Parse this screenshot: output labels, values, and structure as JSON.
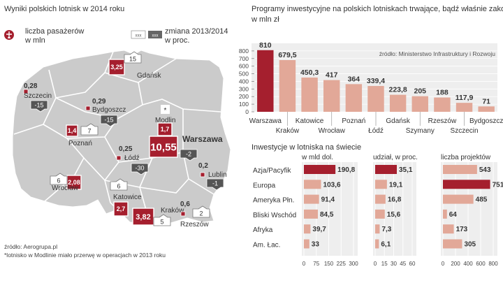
{
  "colors": {
    "accent": "#a51f2e",
    "bar": "#e2a898",
    "map": "#cbcbcb",
    "map_border": "#ffffff",
    "badge": "#e6e6e6",
    "badge_dark": "#555555",
    "text": "#333333",
    "grid": "#bdbdbd",
    "panel": "#eeeeee"
  },
  "map_panel": {
    "title": "Wyniki polskich lotnisk w 2014 roku",
    "legend_passengers": [
      "liczba pasażerów",
      "w mln"
    ],
    "legend_sample_a": "xxx",
    "legend_sample_b": "xxx",
    "legend_change": [
      "zmiana 2013/2014",
      "w proc."
    ],
    "warsaw_label": "Warszawa",
    "modlin_label": "Modlin",
    "modlin_mark": "*",
    "source": "źródło: Aerogrupa.pl",
    "footnote": "*lotnisko w Modlinie miało przerwę w operacjach w 2013 roku",
    "airports": [
      {
        "name": "Gdańsk",
        "passengers": "3,25",
        "change": "15",
        "dir": "up"
      },
      {
        "name": "Szczecin",
        "passengers": "0,28",
        "change": "-15",
        "dir": "down"
      },
      {
        "name": "Bydgoszcz",
        "passengers": "0,29",
        "change": "-15",
        "dir": "down"
      },
      {
        "name": "Poznań",
        "passengers": "1,4",
        "change": "7",
        "dir": "up"
      },
      {
        "name": "Warszawa",
        "passengers": "10,55",
        "change": "-2",
        "dir": "down"
      },
      {
        "name": "Modlin",
        "passengers": "1,7",
        "change": "",
        "dir": "none"
      },
      {
        "name": "Łódź",
        "passengers": "0,25",
        "change": "-30",
        "dir": "down"
      },
      {
        "name": "Lublin",
        "passengers": "0,2",
        "change": "-1",
        "dir": "down"
      },
      {
        "name": "Wrocław",
        "passengers": "2,08",
        "change": "6",
        "dir": "up"
      },
      {
        "name": "Katowice",
        "passengers": "2,7",
        "change": "6",
        "dir": "up"
      },
      {
        "name": "Kraków",
        "passengers": "3,82",
        "change": "5",
        "dir": "up"
      },
      {
        "name": "Rzeszów",
        "passengers": "0,6",
        "change": "2",
        "dir": "up"
      }
    ]
  },
  "chart_data": [
    {
      "type": "bar",
      "title": "Programy inwestycyjne na polskich lotniskach trwające, bądź właśnie zakończone,",
      "subtitle": "w mln zł",
      "source": "źródło: Ministerstwo Infrastruktury i Rozwoju",
      "categories": [
        "Warszawa",
        "Kraków",
        "Katowice",
        "Wrocław",
        "Poznań",
        "Łódź",
        "Gdańsk",
        "Szymany",
        "Rzeszów",
        "Szczecin",
        "Bydgoszcz"
      ],
      "values": [
        810,
        679.5,
        450.3,
        417,
        364,
        339.4,
        223.8,
        205,
        188,
        117.9,
        71
      ],
      "value_labels": [
        "810",
        "679,5",
        "450,3",
        "417",
        "364",
        "339,4",
        "223,8",
        "205",
        "188",
        "117,9",
        "71"
      ],
      "ylim": [
        0,
        900
      ],
      "yticks": [
        "0",
        "100",
        "200",
        "300",
        "400",
        "500",
        "600",
        "700",
        "800"
      ],
      "highlight": 0
    },
    {
      "type": "bar",
      "orientation": "horizontal",
      "title": "Inwestycje w lotniska na świecie",
      "categories": [
        "Azja/Pacyfik",
        "Europa",
        "Ameryka Płn.",
        "Bliski Wschód",
        "Afryka",
        "Am. Łac."
      ],
      "series": [
        {
          "name": "w mld dol.",
          "values": [
            190.8,
            103.6,
            91.4,
            84.5,
            39.7,
            33
          ],
          "labels": [
            "190,8",
            "103,6",
            "91,4",
            "84,5",
            "39,7",
            "33"
          ],
          "xlim": [
            0,
            300
          ],
          "xticks": [
            "0",
            "75",
            "150",
            "225",
            "300"
          ],
          "highlight": 0
        },
        {
          "name": "udział, w proc.",
          "values": [
            35.1,
            19.1,
            16.8,
            15.6,
            7.3,
            6.1
          ],
          "labels": [
            "35,1",
            "19,1",
            "16,8",
            "15,6",
            "7,3",
            "6,1"
          ],
          "xlim": [
            0,
            60
          ],
          "xticks": [
            "0",
            "15",
            "30",
            "45",
            "60"
          ],
          "highlight": 0
        },
        {
          "name": "liczba projektów",
          "values": [
            543,
            751,
            485,
            64,
            173,
            305
          ],
          "labels": [
            "543",
            "751",
            "485",
            "64",
            "173",
            "305"
          ],
          "xlim": [
            0,
            800
          ],
          "xticks": [
            "0",
            "200",
            "400",
            "600",
            "800"
          ],
          "highlight": 1
        }
      ]
    }
  ]
}
